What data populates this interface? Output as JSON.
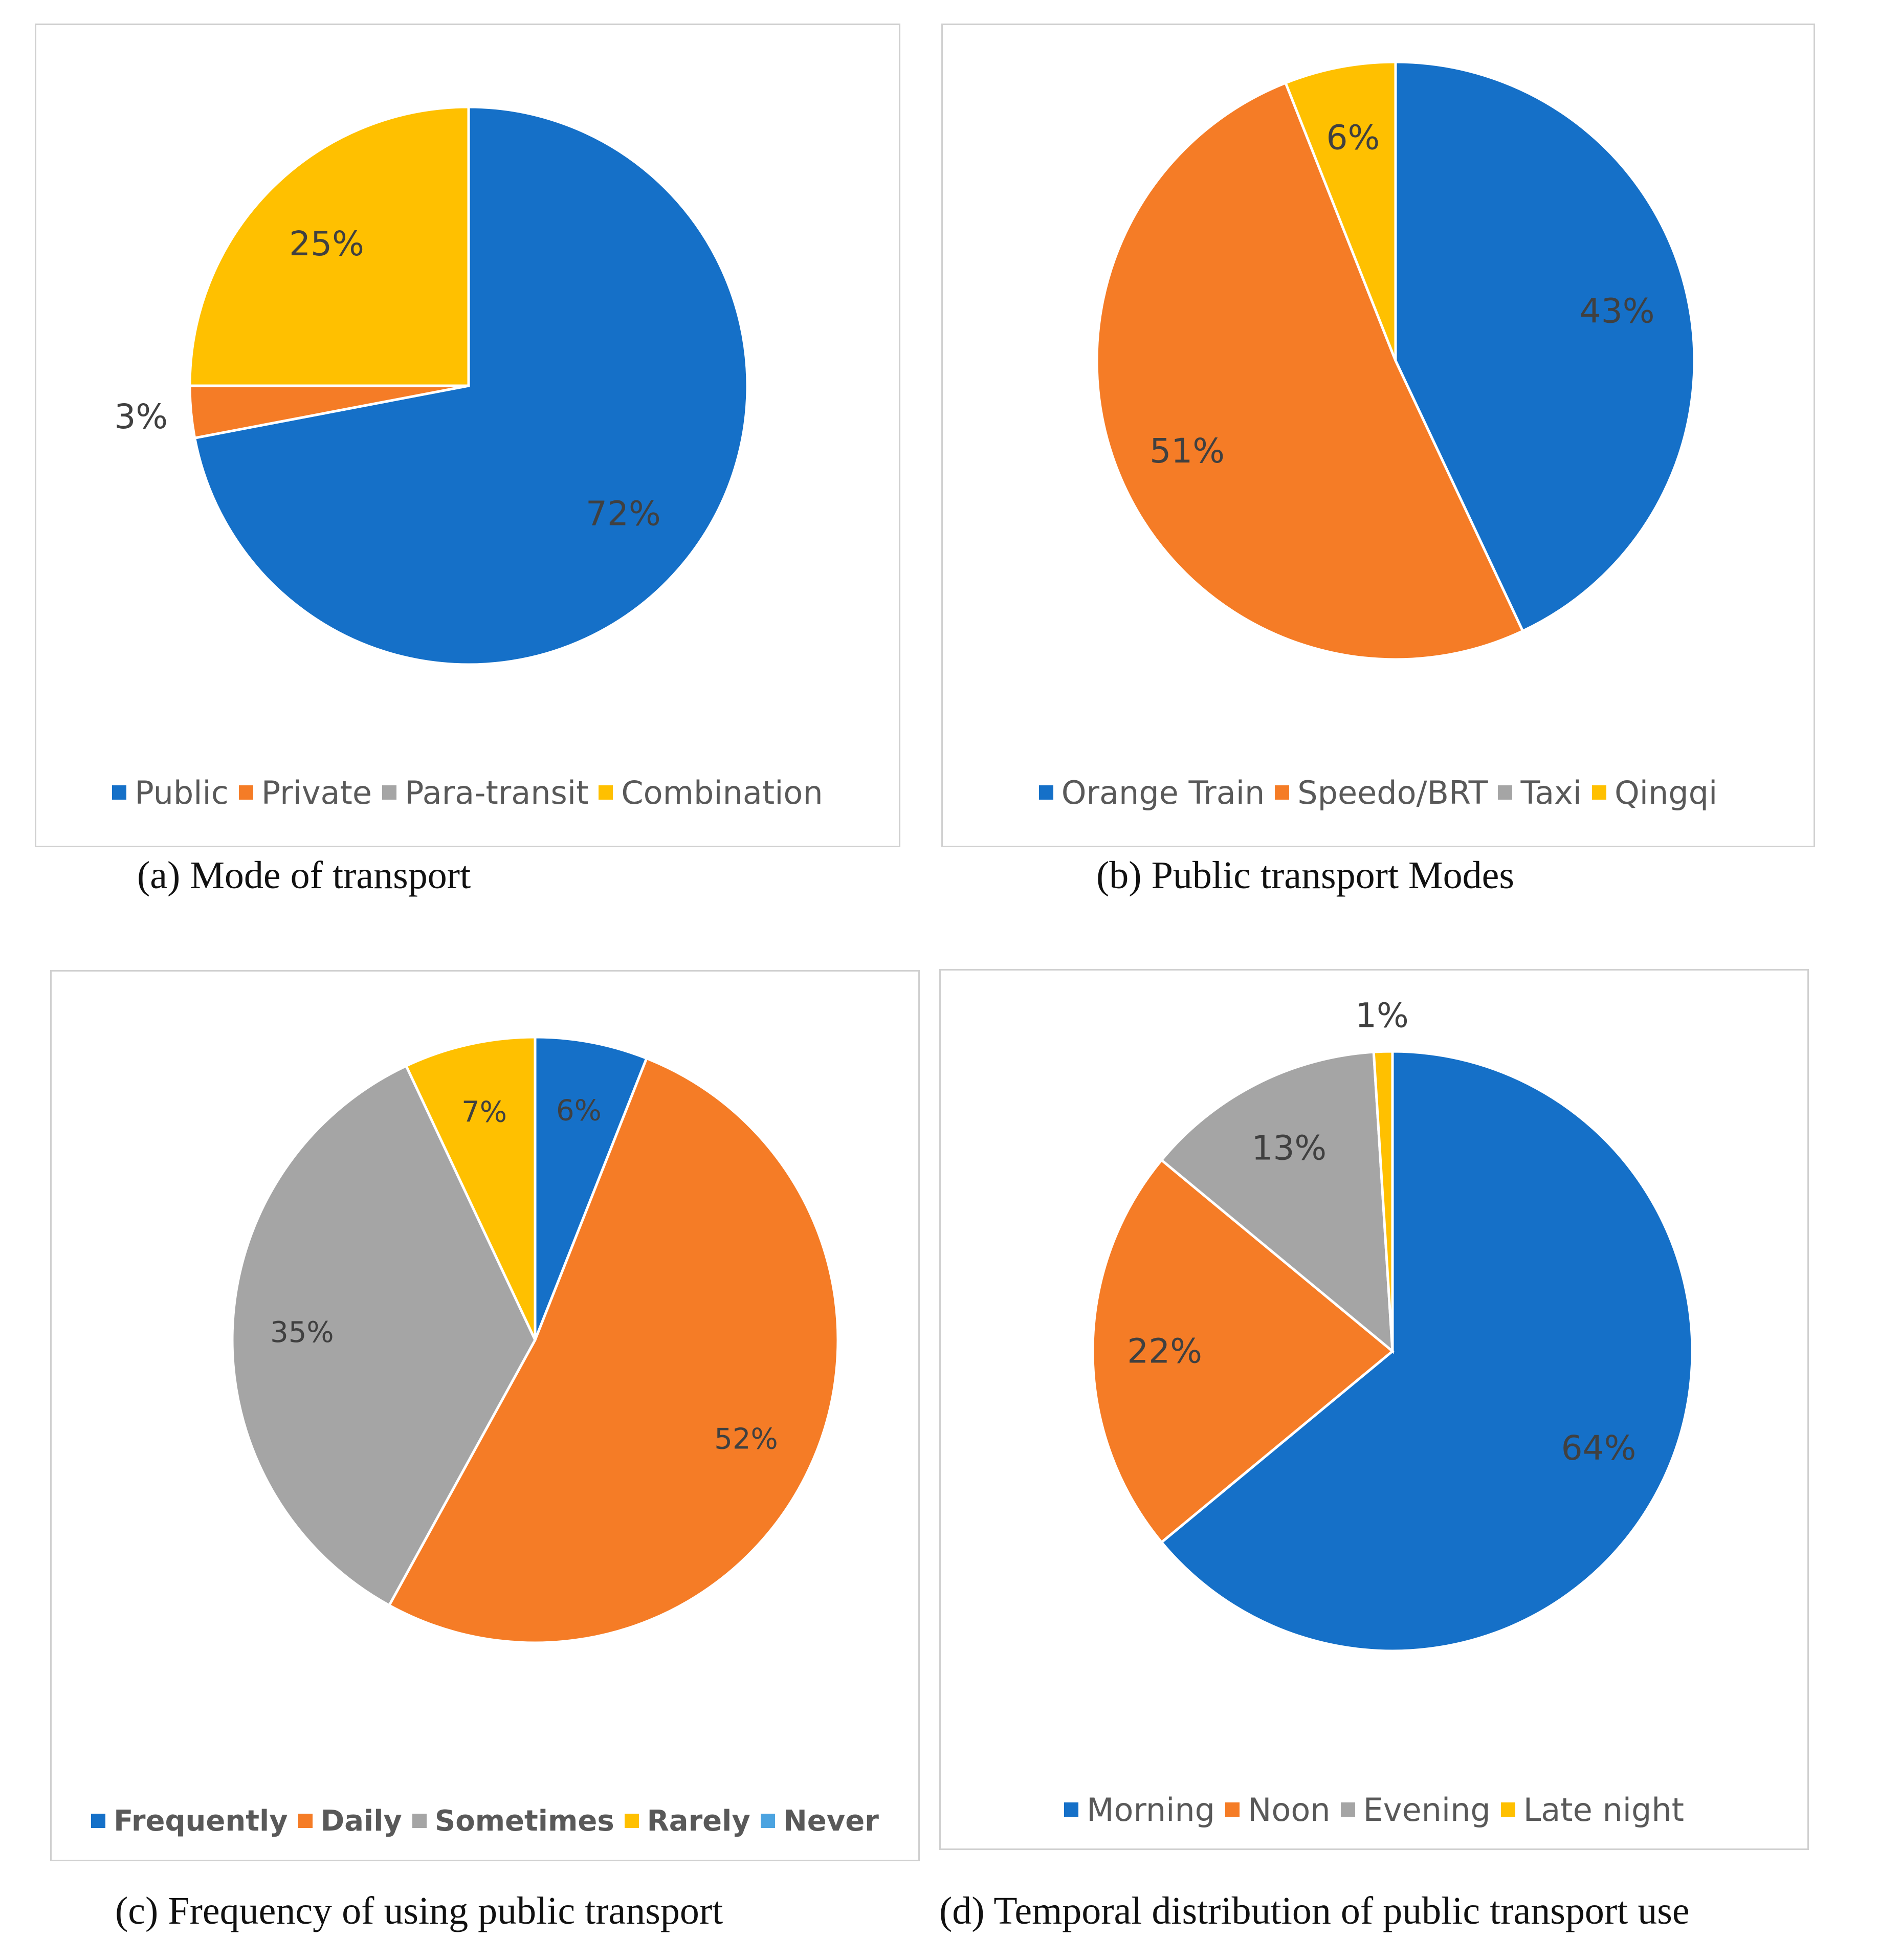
{
  "chart_data": [
    {
      "type": "pie",
      "caption": "(a)  Mode of transport",
      "start_angle_deg": 0,
      "legend_position": "bottom",
      "slices": [
        {
          "label": "Public",
          "value": 72,
          "pct_label": "72%",
          "color": "#1570C8"
        },
        {
          "label": "Private",
          "value": 3,
          "pct_label": "3%",
          "color": "#F57C26"
        },
        {
          "label": "Para-transit",
          "value": 0,
          "pct_label": "",
          "color": "#A5A5A5"
        },
        {
          "label": "Combination",
          "value": 25,
          "pct_label": "25%",
          "color": "#FFC000"
        }
      ]
    },
    {
      "type": "pie",
      "caption": "(b) Public transport Modes",
      "start_angle_deg": 0,
      "legend_position": "bottom",
      "slices": [
        {
          "label": "Orange Train",
          "value": 43,
          "pct_label": "43%",
          "color": "#1570C8"
        },
        {
          "label": "Speedo/BRT",
          "value": 51,
          "pct_label": "51%",
          "color": "#F57C26"
        },
        {
          "label": "Taxi",
          "value": 0,
          "pct_label": "",
          "color": "#A5A5A5"
        },
        {
          "label": "Qingqi",
          "value": 6,
          "pct_label": "6%",
          "color": "#FFC000"
        }
      ]
    },
    {
      "type": "pie",
      "caption": "(c) Frequency of using public transport",
      "start_angle_deg": 0,
      "legend_position": "bottom",
      "slices": [
        {
          "label": "Frequently",
          "value": 6,
          "pct_label": "6%",
          "color": "#1570C8"
        },
        {
          "label": "Daily",
          "value": 52,
          "pct_label": "52%",
          "color": "#F57C26"
        },
        {
          "label": "Sometimes",
          "value": 35,
          "pct_label": "35%",
          "color": "#A5A5A5"
        },
        {
          "label": "Rarely",
          "value": 7,
          "pct_label": "7%",
          "color": "#FFC000"
        },
        {
          "label": "Never",
          "value": 0,
          "pct_label": "",
          "color": "#4BA3E0"
        }
      ]
    },
    {
      "type": "pie",
      "caption": "(d) Temporal distribution of public transport use",
      "start_angle_deg": 0,
      "legend_position": "bottom",
      "slices": [
        {
          "label": "Morning",
          "value": 64,
          "pct_label": "64%",
          "color": "#1570C8"
        },
        {
          "label": "Noon",
          "value": 22,
          "pct_label": "22%",
          "color": "#F57C26"
        },
        {
          "label": "Evening",
          "value": 13,
          "pct_label": "13%",
          "color": "#A5A5A5"
        },
        {
          "label": "Late night",
          "value": 1,
          "pct_label": "1%",
          "color": "#FFC000"
        }
      ]
    }
  ]
}
